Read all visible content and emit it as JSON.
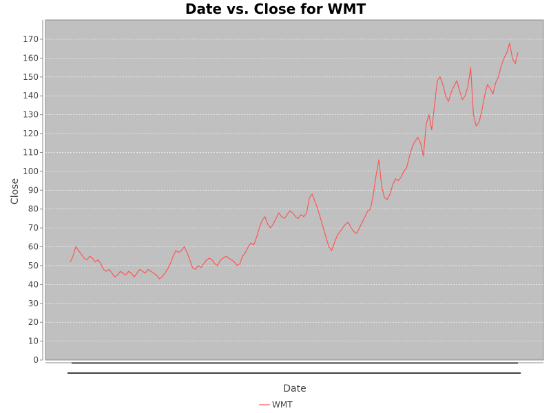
{
  "chart_data": {
    "type": "line",
    "title": "Date vs. Close for WMT",
    "xlabel": "Date",
    "ylabel": "Close",
    "ylim": [
      0,
      170
    ],
    "yticks": [
      0,
      10,
      20,
      30,
      40,
      50,
      60,
      70,
      80,
      90,
      100,
      110,
      120,
      130,
      140,
      150,
      160,
      170
    ],
    "grid": true,
    "legend_position": "bottom-center",
    "colors": {
      "series": "#ff5555",
      "plot_background": "#c0c0c0",
      "gridline": "#ffffff"
    },
    "series": [
      {
        "name": "WMT",
        "y": [
          52,
          55,
          60,
          58,
          56,
          54,
          53,
          55,
          54,
          52,
          53,
          51,
          48,
          47,
          48,
          46,
          44,
          45,
          47,
          46,
          45,
          47,
          46,
          44,
          46,
          48,
          47,
          46,
          48,
          47,
          46,
          45,
          43,
          44,
          46,
          48,
          51,
          55,
          58,
          57,
          58,
          60,
          57,
          53,
          49,
          48,
          50,
          49,
          51,
          53,
          54,
          53,
          51,
          50,
          53,
          54,
          55,
          54,
          53,
          52,
          50,
          51,
          55,
          57,
          60,
          62,
          61,
          65,
          70,
          74,
          76,
          72,
          70,
          72,
          75,
          78,
          76,
          75,
          77,
          79,
          78,
          76,
          75,
          77,
          76,
          78,
          86,
          88,
          84,
          80,
          75,
          70,
          65,
          60,
          58,
          62,
          66,
          68,
          70,
          72,
          73,
          70,
          68,
          67,
          70,
          73,
          76,
          79,
          80,
          88,
          98,
          106,
          92,
          86,
          85,
          88,
          93,
          96,
          95,
          97,
          100,
          102,
          108,
          113,
          116,
          118,
          115,
          108,
          125,
          130,
          122,
          135,
          148,
          150,
          146,
          140,
          137,
          142,
          145,
          148,
          143,
          138,
          140,
          145,
          155,
          130,
          124,
          126,
          132,
          140,
          146,
          144,
          141,
          147,
          150,
          156,
          160,
          163,
          168,
          160,
          157,
          163
        ]
      }
    ]
  },
  "legend": {
    "label": "WMT"
  }
}
